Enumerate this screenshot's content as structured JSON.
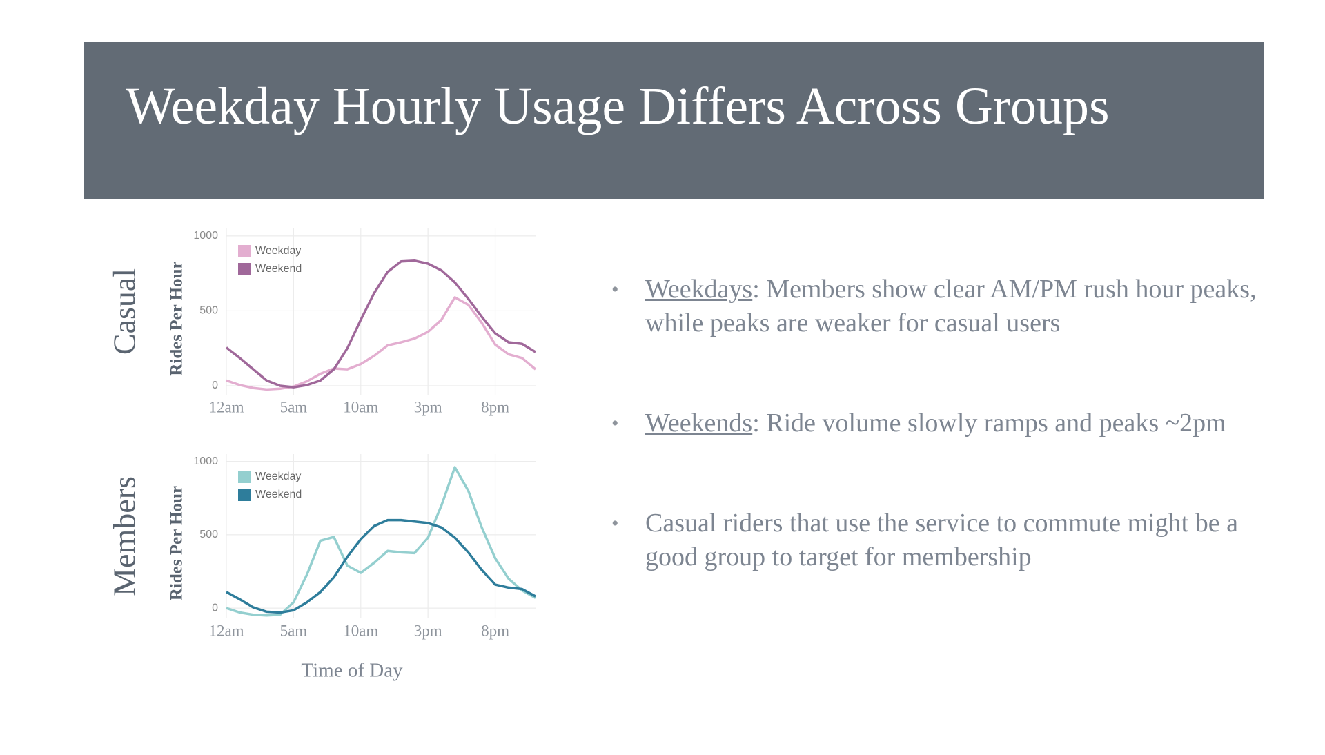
{
  "title": "Weekday Hourly Usage Differs Across Groups",
  "bullets": [
    {
      "lead": "Weekdays",
      "text": ": Members show clear AM/PM rush hour peaks, while peaks are weaker for casual users"
    },
    {
      "lead": "Weekends",
      "text": ": Ride volume slowly ramps and peaks ~2pm"
    },
    {
      "text": "Casual riders that use the service to commute might be a good group to target for membership"
    }
  ],
  "chart_data": [
    {
      "type": "line",
      "group": "Casual",
      "ylabel": "Rides Per Hour",
      "x": [
        0,
        1,
        2,
        3,
        4,
        5,
        6,
        7,
        8,
        9,
        10,
        11,
        12,
        13,
        14,
        15,
        16,
        17,
        18,
        19,
        20,
        21,
        22,
        23
      ],
      "xlim": [
        0,
        23
      ],
      "xticks": [
        {
          "value": 0,
          "label": "12am"
        },
        {
          "value": 5,
          "label": "5am"
        },
        {
          "value": 10,
          "label": "10am"
        },
        {
          "value": 15,
          "label": "3pm"
        },
        {
          "value": 20,
          "label": "8pm"
        }
      ],
      "ylim": [
        -60,
        1050
      ],
      "yticks": [
        0,
        500,
        1000
      ],
      "grid": true,
      "legend": "upper left",
      "series": [
        {
          "name": "Weekday",
          "color": "#e3aed0",
          "values": [
            35,
            5,
            -15,
            -25,
            -20,
            -5,
            30,
            80,
            115,
            110,
            145,
            200,
            270,
            290,
            315,
            360,
            440,
            590,
            540,
            420,
            275,
            210,
            185,
            110
          ]
        },
        {
          "name": "Weekend",
          "color": "#a0689a",
          "values": [
            255,
            185,
            110,
            35,
            0,
            -10,
            5,
            35,
            110,
            250,
            440,
            620,
            760,
            830,
            835,
            815,
            770,
            690,
            580,
            460,
            350,
            290,
            280,
            225
          ]
        }
      ]
    },
    {
      "type": "line",
      "group": "Members",
      "ylabel": "Rides Per Hour",
      "xlabel": "Time of Day",
      "x": [
        0,
        1,
        2,
        3,
        4,
        5,
        6,
        7,
        8,
        9,
        10,
        11,
        12,
        13,
        14,
        15,
        16,
        17,
        18,
        19,
        20,
        21,
        22,
        23
      ],
      "xlim": [
        0,
        23
      ],
      "xticks": [
        {
          "value": 0,
          "label": "12am"
        },
        {
          "value": 5,
          "label": "5am"
        },
        {
          "value": 10,
          "label": "10am"
        },
        {
          "value": 15,
          "label": "3pm"
        },
        {
          "value": 20,
          "label": "8pm"
        }
      ],
      "ylim": [
        -70,
        1050
      ],
      "yticks": [
        0,
        500,
        1000
      ],
      "grid": true,
      "legend": "upper left",
      "series": [
        {
          "name": "Weekday",
          "color": "#94cfcf",
          "values": [
            0,
            -30,
            -45,
            -50,
            -45,
            40,
            230,
            460,
            485,
            290,
            240,
            310,
            390,
            380,
            375,
            480,
            700,
            960,
            800,
            550,
            340,
            200,
            120,
            70
          ]
        },
        {
          "name": "Weekend",
          "color": "#2e7d9b",
          "values": [
            110,
            60,
            5,
            -25,
            -30,
            -15,
            40,
            110,
            210,
            350,
            470,
            560,
            600,
            600,
            590,
            580,
            550,
            480,
            380,
            260,
            160,
            140,
            130,
            80
          ]
        }
      ]
    }
  ]
}
